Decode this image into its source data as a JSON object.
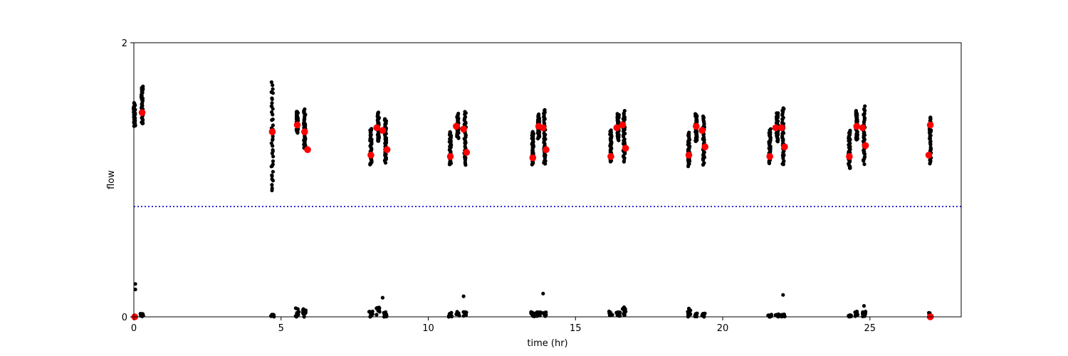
{
  "chart_data": {
    "type": "scatter",
    "title": "",
    "xlabel": "time (hr)",
    "ylabel": "flow",
    "xlim": [
      0,
      28.1
    ],
    "ylim": [
      0,
      2
    ],
    "xticks": [
      0,
      5,
      10,
      15,
      20,
      25
    ],
    "yticks": [
      0,
      2
    ],
    "grid": false,
    "legend": "none",
    "threshold": {
      "y": 0.805,
      "color": "#0000cc",
      "style": "dotted"
    },
    "colors": {
      "raw": "#000000",
      "mean": "#ff0000",
      "axis": "#000000"
    },
    "raw_clusters": [
      {
        "x": 0.02,
        "ymin": 1.39,
        "ymax": 1.56,
        "low_max": 0.01
      },
      {
        "x": 0.28,
        "ymin": 1.41,
        "ymax": 1.68,
        "low_max": 0.03
      },
      {
        "x": 4.7,
        "ymin": 0.92,
        "ymax": 1.71,
        "low_max": 0.02
      },
      {
        "x": 5.55,
        "ymin": 1.34,
        "ymax": 1.5,
        "low_max": 0.07
      },
      {
        "x": 5.8,
        "ymin": 1.23,
        "ymax": 1.51,
        "low_max": 0.06
      },
      {
        "x": 8.05,
        "ymin": 1.11,
        "ymax": 1.37,
        "low_max": 0.04
      },
      {
        "x": 8.3,
        "ymin": 1.28,
        "ymax": 1.49,
        "low_max": 0.07
      },
      {
        "x": 8.55,
        "ymin": 1.13,
        "ymax": 1.45,
        "low_max": 0.04
      },
      {
        "x": 10.75,
        "ymin": 1.11,
        "ymax": 1.35,
        "low_max": 0.03
      },
      {
        "x": 11.0,
        "ymin": 1.3,
        "ymax": 1.48,
        "low_max": 0.04
      },
      {
        "x": 11.25,
        "ymin": 1.11,
        "ymax": 1.49,
        "low_max": 0.04
      },
      {
        "x": 13.55,
        "ymin": 1.11,
        "ymax": 1.35,
        "low_max": 0.04
      },
      {
        "x": 13.75,
        "ymin": 1.3,
        "ymax": 1.48,
        "low_max": 0.04
      },
      {
        "x": 13.95,
        "ymin": 1.11,
        "ymax": 1.51,
        "low_max": 0.04
      },
      {
        "x": 16.2,
        "ymin": 1.13,
        "ymax": 1.36,
        "low_max": 0.04
      },
      {
        "x": 16.45,
        "ymin": 1.29,
        "ymax": 1.48,
        "low_max": 0.04
      },
      {
        "x": 16.65,
        "ymin": 1.13,
        "ymax": 1.5,
        "low_max": 0.06
      },
      {
        "x": 18.85,
        "ymin": 1.1,
        "ymax": 1.35,
        "low_max": 0.05
      },
      {
        "x": 19.1,
        "ymin": 1.28,
        "ymax": 1.48,
        "low_max": 0.03
      },
      {
        "x": 19.35,
        "ymin": 1.11,
        "ymax": 1.46,
        "low_max": 0.03
      },
      {
        "x": 21.6,
        "ymin": 1.12,
        "ymax": 1.37,
        "low_max": 0.02
      },
      {
        "x": 21.85,
        "ymin": 1.28,
        "ymax": 1.49,
        "low_max": 0.02
      },
      {
        "x": 22.05,
        "ymin": 1.11,
        "ymax": 1.52,
        "low_max": 0.02
      },
      {
        "x": 24.3,
        "ymin": 1.08,
        "ymax": 1.36,
        "low_max": 0.02
      },
      {
        "x": 24.55,
        "ymin": 1.29,
        "ymax": 1.5,
        "low_max": 0.04
      },
      {
        "x": 24.8,
        "ymin": 1.12,
        "ymax": 1.53,
        "low_max": 0.04
      },
      {
        "x": 27.05,
        "ymin": 1.12,
        "ymax": 1.46,
        "low_max": 0.03
      }
    ],
    "raw_outliers": [
      {
        "x": 0.05,
        "y": 0.24
      },
      {
        "x": 0.05,
        "y": 0.2
      },
      {
        "x": 8.45,
        "y": 0.14
      },
      {
        "x": 11.2,
        "y": 0.15
      },
      {
        "x": 13.9,
        "y": 0.17
      },
      {
        "x": 16.65,
        "y": 0.07
      },
      {
        "x": 18.85,
        "y": 0.06
      },
      {
        "x": 22.05,
        "y": 0.16
      },
      {
        "x": 24.8,
        "y": 0.08
      }
    ],
    "series": [
      {
        "x": [
          0.03,
          0.28,
          4.7,
          5.55,
          5.8,
          5.9,
          8.05,
          8.25,
          8.45,
          8.6,
          10.75,
          10.95,
          11.2,
          11.3,
          13.55,
          13.75,
          13.9,
          14.0,
          16.2,
          16.4,
          16.6,
          16.7,
          18.85,
          19.1,
          19.3,
          19.4,
          21.6,
          21.8,
          22.0,
          22.1,
          24.3,
          24.55,
          24.75,
          24.85,
          27.0,
          27.05
        ],
        "y": [
          0.0,
          1.49,
          1.35,
          1.4,
          1.35,
          1.22,
          1.18,
          1.38,
          1.36,
          1.22,
          1.17,
          1.39,
          1.37,
          1.2,
          1.16,
          1.39,
          1.38,
          1.22,
          1.17,
          1.38,
          1.4,
          1.23,
          1.18,
          1.39,
          1.36,
          1.24,
          1.17,
          1.38,
          1.38,
          1.24,
          1.17,
          1.39,
          1.38,
          1.25,
          1.18,
          1.4
        ]
      },
      {
        "x": [
          27.05
        ],
        "y": [
          0.0
        ]
      }
    ]
  }
}
